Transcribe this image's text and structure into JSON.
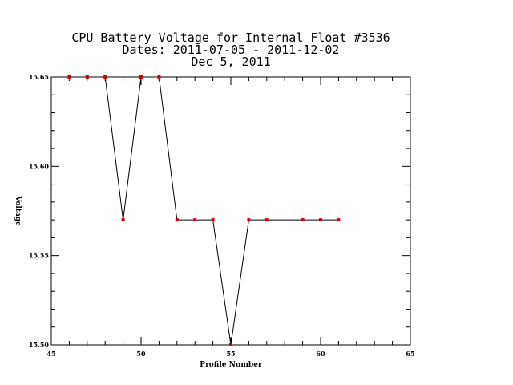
{
  "chart_data": {
    "type": "line",
    "title_lines": [
      "CPU Battery Voltage for Internal Float #3536",
      "Dates:  2011-07-05 -  2011-12-02",
      "Dec  5, 2011"
    ],
    "xlabel": "Profile Number",
    "ylabel": "Voltage",
    "xlim": [
      45,
      65
    ],
    "ylim": [
      15.5,
      15.65
    ],
    "x_ticks": [
      45,
      50,
      55,
      60,
      65
    ],
    "x_tick_labels": [
      "45",
      "50",
      "55",
      "60",
      "65"
    ],
    "y_ticks": [
      15.5,
      15.55,
      15.6,
      15.65
    ],
    "y_tick_labels": [
      "15.50",
      "15.55",
      "15.60",
      "15.65"
    ],
    "grid": false,
    "series": [
      {
        "x": [
          46,
          47,
          48,
          49,
          50,
          51,
          52,
          53,
          54,
          55,
          56,
          57,
          59,
          60,
          61
        ],
        "y": [
          15.65,
          15.65,
          15.65,
          15.57,
          15.65,
          15.65,
          15.57,
          15.57,
          15.57,
          15.5,
          15.57,
          15.57,
          15.57,
          15.57,
          15.57
        ],
        "line_color": "#000000",
        "marker_color": "#cc0000"
      }
    ]
  }
}
